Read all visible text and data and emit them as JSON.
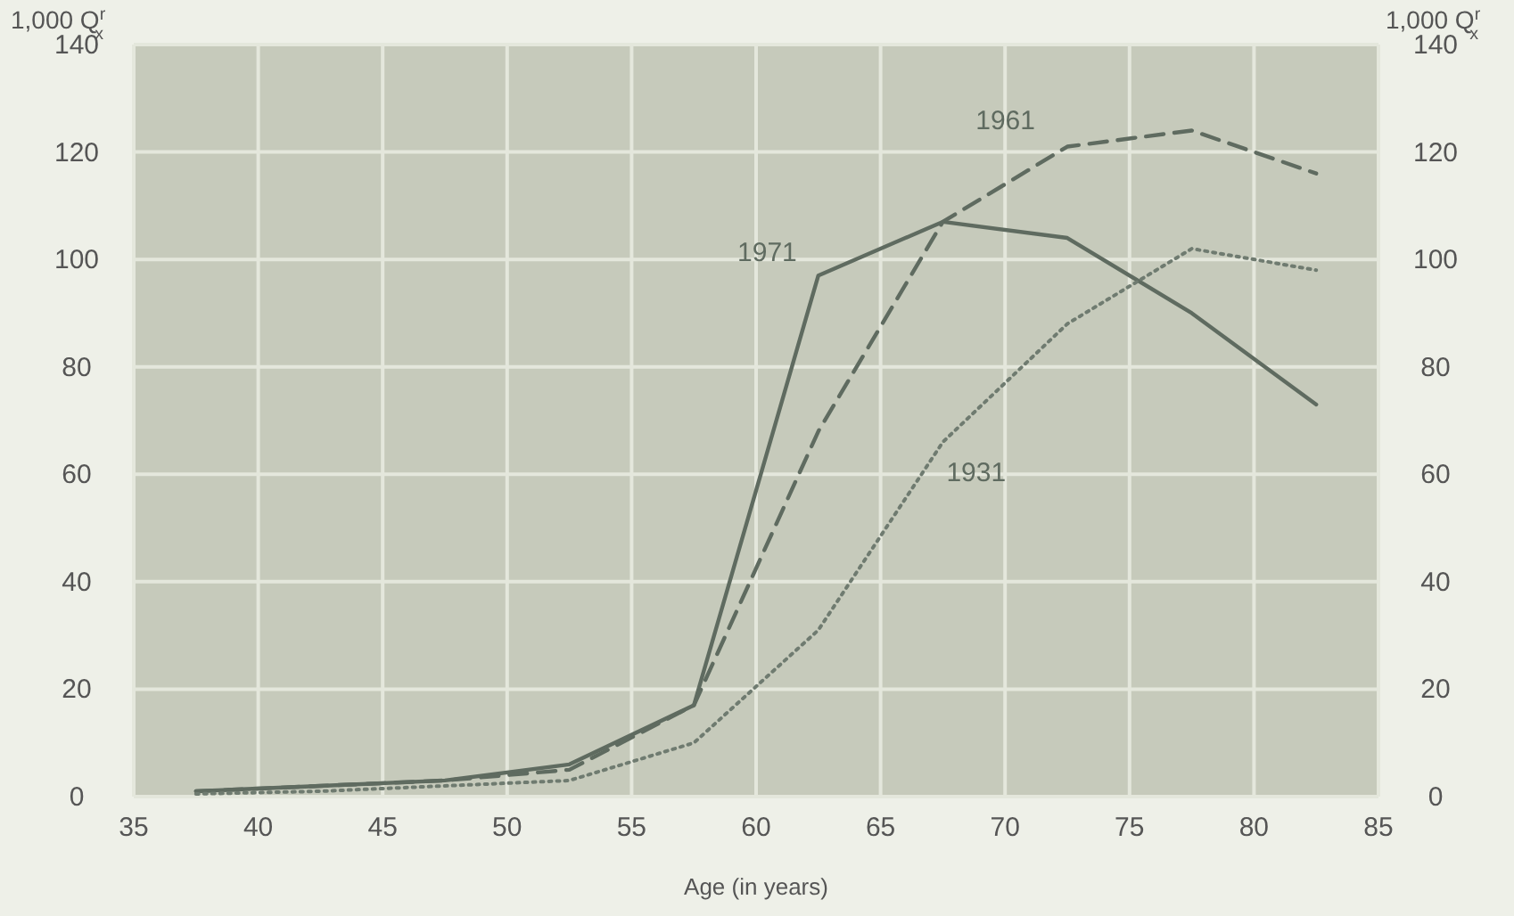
{
  "chart_data": {
    "type": "line",
    "xlabel": "Age (in years)",
    "ylabel": "1,000 Q$^{r}$$_{x}$",
    "y2label": "1,000 Q$^{r}$$_{x}$",
    "x": [
      37.5,
      42.5,
      47.5,
      52.5,
      57.5,
      62.5,
      67.5,
      72.5,
      77.5,
      82.5
    ],
    "xlim": [
      35,
      85
    ],
    "xticks": [
      35,
      40,
      45,
      50,
      55,
      60,
      65,
      70,
      75,
      80,
      85
    ],
    "ylim": [
      0,
      140
    ],
    "yticks": [
      0,
      20,
      40,
      60,
      80,
      100,
      120,
      140
    ],
    "y2lim": [
      0,
      140
    ],
    "y2ticks": [
      0,
      20,
      40,
      60,
      80,
      100,
      120,
      140
    ],
    "grid": true,
    "series": [
      {
        "name": "1971",
        "color": "#5f6b60",
        "line_style": "solid",
        "values": [
          1,
          2,
          3,
          6,
          17,
          97,
          107,
          104,
          90,
          73
        ]
      },
      {
        "name": "1961",
        "color": "#5f6b60",
        "line_style": "dashed",
        "values": [
          1,
          2,
          3,
          5,
          17,
          68,
          107,
          121,
          124,
          116
        ]
      },
      {
        "name": "1931",
        "color": "#6f7b70",
        "line_style": "dotted",
        "values": [
          0.5,
          1,
          2,
          3,
          10,
          31,
          66,
          88,
          102,
          98
        ]
      }
    ]
  }
}
